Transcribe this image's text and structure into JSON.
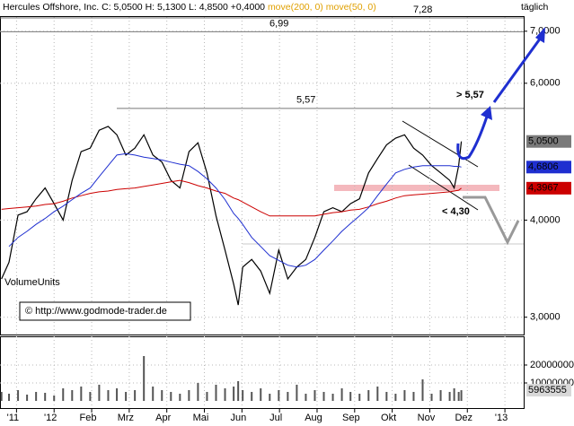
{
  "header": {
    "title": "Hercules Offshore, Inc.",
    "close": "C: 5,0500",
    "high": "H: 5,1300",
    "low": "L: 4,8500",
    "change": "+0,4000",
    "period": "täglich",
    "copyright": "© http://www.godmode-trader.de"
  },
  "chart_data": [
    {
      "type": "line",
      "log_scale": true,
      "grid": true,
      "x": [
        -0.4,
        -0.2,
        0.04,
        0.28,
        0.52,
        0.76,
        1,
        1.24,
        1.48,
        1.72,
        1.96,
        2.2,
        2.44,
        2.67,
        2.91,
        3.15,
        3.39,
        3.63,
        3.87,
        4.11,
        4.35,
        4.59,
        4.83,
        5.07,
        5.31,
        5.55,
        5.78,
        5.9,
        6.02,
        6.26,
        6.5,
        6.74,
        6.98,
        7.22,
        7.46,
        7.7,
        7.94,
        8.18,
        8.42,
        8.66,
        8.89,
        9.13,
        9.37,
        9.61,
        9.85,
        10.09,
        10.33,
        10.57,
        10.81,
        11.05,
        11.29,
        11.53,
        11.65,
        11.77,
        11.84
      ],
      "series": [
        {
          "color": "#000000",
          "values": [
            3.36,
            3.53,
            4.06,
            4.1,
            4.26,
            4.4,
            4.2,
            4.0,
            4.5,
            4.9,
            4.95,
            5.22,
            5.28,
            5.15,
            4.85,
            4.95,
            5.15,
            4.85,
            4.75,
            4.5,
            4.4,
            4.9,
            5.03,
            4.6,
            4.05,
            3.66,
            3.31,
            3.11,
            3.48,
            3.56,
            3.44,
            3.22,
            3.66,
            3.36,
            3.48,
            3.56,
            3.8,
            4.1,
            4.15,
            4.1,
            4.2,
            4.26,
            4.6,
            4.8,
            5.0,
            5.1,
            5.15,
            4.95,
            4.85,
            4.7,
            4.6,
            4.5,
            4.4,
            4.7,
            5.05
          ]
        },
        {
          "name": "move(200, 0)",
          "color": "#cc0000",
          "values": [
            4.13,
            4.14,
            4.15,
            4.16,
            4.17,
            4.19,
            4.2,
            4.23,
            4.27,
            4.3,
            4.33,
            4.35,
            4.36,
            4.38,
            4.39,
            4.4,
            4.42,
            4.44,
            4.46,
            4.48,
            4.5,
            4.47,
            4.43,
            4.4,
            4.36,
            4.33,
            4.27,
            4.25,
            4.22,
            4.16,
            4.1,
            4.05,
            4.05,
            4.05,
            4.05,
            4.05,
            4.05,
            4.07,
            4.09,
            4.1,
            4.12,
            4.13,
            4.16,
            4.2,
            4.23,
            4.27,
            4.3,
            4.31,
            4.32,
            4.33,
            4.34,
            4.35,
            4.36,
            4.37,
            4.3967
          ]
        },
        {
          "name": "move(50, 0)",
          "color": "#1f2fd0",
          "values": [
            null,
            3.7,
            3.8,
            3.87,
            3.95,
            4.02,
            4.1,
            4.17,
            4.25,
            4.33,
            4.4,
            4.55,
            4.7,
            4.85,
            4.87,
            4.85,
            4.82,
            4.8,
            4.78,
            4.75,
            4.72,
            4.7,
            4.62,
            4.52,
            4.4,
            4.25,
            4.08,
            4.02,
            3.95,
            3.8,
            3.7,
            3.6,
            3.55,
            3.5,
            3.48,
            3.5,
            3.56,
            3.66,
            3.76,
            3.87,
            3.96,
            4.05,
            4.15,
            4.3,
            4.45,
            4.6,
            4.65,
            4.68,
            4.7,
            4.7,
            4.7,
            4.7,
            4.69,
            4.69,
            4.6806
          ]
        }
      ],
      "xlim": [
        -0.44,
        13.5
      ],
      "xticks": [
        {
          "value": 0,
          "label": "'11"
        },
        {
          "value": 1,
          "label": "'12"
        },
        {
          "value": 2,
          "label": "Feb"
        },
        {
          "value": 3,
          "label": "Mrz"
        },
        {
          "value": 4,
          "label": "Apr"
        },
        {
          "value": 5,
          "label": "Mai"
        },
        {
          "value": 6,
          "label": "Jun"
        },
        {
          "value": 7,
          "label": "Jul"
        },
        {
          "value": 8,
          "label": "Aug"
        },
        {
          "value": 9,
          "label": "Sep"
        },
        {
          "value": 10,
          "label": "Okt"
        },
        {
          "value": 11,
          "label": "Nov"
        },
        {
          "value": 12,
          "label": "Dez"
        },
        {
          "value": 13,
          "label": "'13"
        }
      ],
      "ylim": [
        2.85,
        7.32
      ],
      "yticks": [
        {
          "value": 3,
          "label": "3,0000"
        },
        {
          "value": 4,
          "label": "4,0000"
        },
        {
          "value": 6,
          "label": "6,0000"
        },
        {
          "value": 7,
          "label": "7,0000"
        }
      ],
      "levels": [
        {
          "value": 7.28,
          "label": "7,28"
        },
        {
          "value": 6.99,
          "label": "6,99"
        },
        {
          "value": 5.57,
          "label": "5,57"
        }
      ],
      "targets": [
        "> 5,57",
        "< 4,30"
      ],
      "tags": [
        {
          "value": 5.05,
          "label": "5,0500",
          "color": "#7a7a7a"
        },
        {
          "value": 4.6806,
          "label": "4,6806",
          "color": "#1f2fd0"
        },
        {
          "value": 4.3967,
          "label": "4,3967",
          "color": "#cc0000"
        }
      ]
    },
    {
      "type": "bar",
      "title": "VolumeUnits",
      "color": "#555555",
      "grid": true,
      "x": [
        -0.4,
        -0.2,
        0.04,
        0.28,
        0.52,
        0.76,
        1,
        1.24,
        1.48,
        1.72,
        1.96,
        2.2,
        2.44,
        2.67,
        2.91,
        3.15,
        3.39,
        3.63,
        3.87,
        4.11,
        4.35,
        4.59,
        4.83,
        5.07,
        5.31,
        5.55,
        5.78,
        5.9,
        6.02,
        6.26,
        6.5,
        6.74,
        6.98,
        7.22,
        7.46,
        7.7,
        7.94,
        8.18,
        8.42,
        8.66,
        8.89,
        9.13,
        9.37,
        9.61,
        9.85,
        10.09,
        10.33,
        10.57,
        10.81,
        11.05,
        11.29,
        11.53,
        11.65,
        11.77,
        11.84
      ],
      "values": [
        5000000,
        4000000,
        6000000,
        3500000,
        5000000,
        4500000,
        3000000,
        7000000,
        6000000,
        8000000,
        5000000,
        9000000,
        6000000,
        7000000,
        5000000,
        6000000,
        25000000,
        8000000,
        6000000,
        5000000,
        4000000,
        6000000,
        10000000,
        5000000,
        9000000,
        7000000,
        8000000,
        11000000,
        6000000,
        5000000,
        7000000,
        4000000,
        6000000,
        5000000,
        9000000,
        4000000,
        6000000,
        5000000,
        4000000,
        7000000,
        5000000,
        4000000,
        6000000,
        8000000,
        5000000,
        4000000,
        6000000,
        5000000,
        12000000,
        4000000,
        6000000,
        5000000,
        7000000,
        5000000,
        5963555
      ],
      "xlim": [
        -0.44,
        13.5
      ],
      "ylim": [
        0,
        35000000
      ],
      "yticks": [
        10000000,
        20000000
      ],
      "tags": [
        5963555
      ]
    }
  ]
}
